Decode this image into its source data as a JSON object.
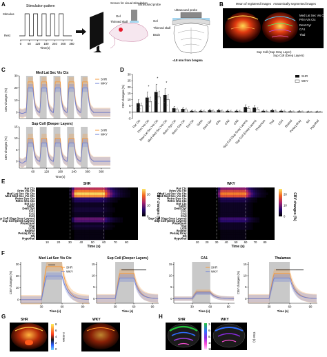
{
  "panel_letters": {
    "a": "A",
    "b": "B",
    "c": "C",
    "d": "D",
    "e": "E",
    "f": "F",
    "g": "G",
    "h": "H"
  },
  "colors": {
    "shr": "#f59a3c",
    "wky": "#6b7fd6",
    "stim": "#c9c9c9",
    "bar_shr": "#111111",
    "bar_wky": "#ffffff"
  },
  "panel_a": {
    "title": "Stimulation pattern",
    "stimulus": "Stimulus",
    "rest": "Rest",
    "xlabel": "Time(s)",
    "ticks": [
      "0",
      "60",
      "120",
      "180",
      "240",
      "300",
      "360"
    ],
    "screen_label": "Screen for visual stimulation",
    "probe_label": "Ultrasound probe",
    "gel": "Gel",
    "skull": "Thinned skull",
    "probe_label2": "Ultrasound probe",
    "gel2": "Gel",
    "skull2": "Thinned skull",
    "brain": "Brain",
    "bregma": "-4.8 mm from bregma"
  },
  "panel_b": {
    "title_left": "Mean of registered images",
    "title_right": "Anatomically segmented images",
    "regions_right": [
      "Med Lat Sec Vis Ctx",
      "Prim Vis Ctx",
      "Dent Gyr",
      "CA1",
      "Thal"
    ],
    "regions_bottom": [
      "Sup Coll (Sup Gray Layer)",
      "Sup Coll (Deep Layers)"
    ]
  },
  "panel_c": {
    "top_title": "Med Lat Sec Vis Ctx",
    "bottom_title": "Sup Coll (Deeper Layers)",
    "ylabel": "CBV changes (%)",
    "xlabel": "Time(s)",
    "legend_shr": "SHR",
    "legend_wky": "WKY",
    "top_yticks": [
      "0",
      "10",
      "20",
      "30"
    ],
    "bottom_yticks": [
      "0",
      "5",
      "10",
      "15"
    ],
    "xticks": [
      "60",
      "120",
      "180",
      "240",
      "300",
      "360"
    ]
  },
  "chart_data": [
    {
      "type": "line",
      "title": "Med Lat Sec Vis Ctx",
      "ylabel": "CBV changes (%)",
      "xlabel": "Time(s)",
      "xlim": [
        0,
        400
      ],
      "ylim": [
        -5,
        30
      ],
      "stim_windows": [
        [
          30,
          60
        ],
        [
          90,
          120
        ],
        [
          150,
          180
        ],
        [
          210,
          240
        ],
        [
          270,
          300
        ]
      ],
      "series": [
        {
          "name": "SHR",
          "peak": 25,
          "base": 0
        },
        {
          "name": "WKY",
          "peak": 20,
          "base": 0
        }
      ]
    },
    {
      "type": "line",
      "title": "Sup Coll (Deeper Layers)",
      "ylabel": "CBV changes (%)",
      "xlabel": "Time(s)",
      "xlim": [
        0,
        400
      ],
      "ylim": [
        -3,
        15
      ],
      "stim_windows": [
        [
          30,
          60
        ],
        [
          90,
          120
        ],
        [
          150,
          180
        ],
        [
          210,
          240
        ],
        [
          270,
          300
        ]
      ],
      "series": [
        {
          "name": "SHR",
          "peak": 10,
          "base": 0
        },
        {
          "name": "WKY",
          "peak": 8,
          "base": 0
        }
      ]
    },
    {
      "type": "bar",
      "ylabel": "CBV changes (%)",
      "ylim": [
        -5,
        30
      ],
      "yticks": [
        "-5",
        "0",
        "5",
        "10",
        "15",
        "20",
        "25",
        "30"
      ],
      "categories": [
        "Par Ctx",
        "Prim Vis Ctx",
        "Med Lat Sec Vis Ctx",
        "Med Med Sec Vis Ctx",
        "Retro Dys Ctx",
        "Retro Gra Ctx",
        "Ent Ctx",
        "Subic",
        "Dent Gyr",
        "CA1",
        "CA2",
        "CA3",
        "Sup Coll (Sup Gray Layers)",
        "Sup Coll (Deep Layers)",
        "Pretectum",
        "Thal",
        "LGN",
        "Brainst",
        "Periaq Gray",
        "SN",
        "Hypothal"
      ],
      "series": [
        {
          "name": "SHR",
          "values": [
            7,
            11.5,
            16,
            13.5,
            3,
            2.5,
            1,
            1,
            1.5,
            1.5,
            1,
            1,
            4,
            3.5,
            1,
            1.5,
            1,
            0.5,
            0.5,
            0.3,
            0.3
          ]
        },
        {
          "name": "WKY",
          "values": [
            5,
            8.5,
            12,
            10,
            2,
            2,
            0.8,
            0.8,
            1,
            1,
            0.8,
            0.8,
            3,
            2.5,
            0.8,
            1,
            0.8,
            0.4,
            0.4,
            0.2,
            0.2
          ]
        }
      ],
      "significance": [
        "",
        "*",
        "*",
        "*",
        "",
        "",
        "",
        "",
        "",
        "",
        "",
        "",
        "",
        "",
        "",
        "",
        "",
        "",
        "",
        "",
        ""
      ],
      "legend": [
        "SHR",
        "WKY"
      ]
    },
    {
      "type": "heatmap",
      "title": "SHR",
      "xlabel": "Time (s)",
      "xticks": [
        "10",
        "20",
        "30",
        "40",
        "50",
        "60",
        "70",
        "80"
      ],
      "colorbar_label": "CBV changes (%)",
      "colorbar_ticks": [
        "0",
        "10",
        "20"
      ],
      "rows": [
        "Par Ctx",
        "Prim Vis Ctx",
        "Med Lat Sec Vis Ctx",
        "Med Med Sec Vis Ctx",
        "Retro Dys Ctx",
        "Retro Gra Ctx",
        "Ent Ctx",
        "Subic",
        "Dent Gyr",
        "CA1",
        "CA2",
        "CA3",
        "Sup Coll (Sup Gray Layers)",
        "Sup Coll (Deep Layers)",
        "Pretectum",
        "Thal",
        "LGN",
        "Brainst",
        "Periaq Gray",
        "SN",
        "Hypothal"
      ],
      "row_peaks": [
        14,
        20,
        24,
        21,
        6,
        5,
        2,
        2,
        3,
        3,
        2,
        2,
        9,
        8,
        2,
        3,
        2,
        1,
        1,
        1,
        1
      ]
    },
    {
      "type": "heatmap",
      "title": "WKY",
      "xlabel": "Time (s)",
      "xticks": [
        "10",
        "20",
        "30",
        "40",
        "50",
        "60",
        "70",
        "80"
      ],
      "colorbar_label": "CBV changes (%)",
      "colorbar_ticks": [
        "0",
        "10",
        "20"
      ],
      "row_peaks": [
        11,
        16,
        20,
        17,
        5,
        4,
        2,
        2,
        2,
        2,
        2,
        2,
        7,
        6,
        2,
        2,
        2,
        1,
        1,
        1,
        1
      ]
    },
    {
      "type": "line",
      "title": "Med Lat Sec Vis Ctx",
      "ylabel": "CBV changes (%)",
      "xlabel": "Time (s)",
      "xticks": [
        "30",
        "60",
        "90"
      ],
      "yticks": [
        "0",
        "10",
        "20",
        "30"
      ],
      "ylim": [
        -3,
        32
      ],
      "series": [
        {
          "name": "SHR",
          "peak": 28
        },
        {
          "name": "WKY",
          "peak": 20
        }
      ]
    },
    {
      "type": "line",
      "title": "Sup Coll (Deeper Layers)",
      "xlabel": "Time (s)",
      "xticks": [
        "30",
        "60",
        "90"
      ],
      "yticks": [
        "0",
        "5",
        "10",
        "15"
      ],
      "ylim": [
        -2,
        16
      ],
      "series": [
        {
          "name": "SHR",
          "peak": 11
        },
        {
          "name": "WKY",
          "peak": 9
        }
      ]
    },
    {
      "type": "line",
      "title": "CA1",
      "xlabel": "Time (s)",
      "xticks": [
        "30",
        "60",
        "90"
      ],
      "yticks": [
        "0",
        "5",
        "10",
        "15"
      ],
      "ylim": [
        -2,
        16
      ],
      "series": [
        {
          "name": "SHR",
          "peak": 3
        },
        {
          "name": "WKY",
          "peak": 2.5
        }
      ]
    },
    {
      "type": "line",
      "title": "Thalamus",
      "xlabel": "Time (s)",
      "xticks": [
        "30",
        "60",
        "90"
      ],
      "yticks": [
        "0",
        "5",
        "10",
        "15"
      ],
      "ylim": [
        -2,
        16
      ],
      "series": [
        {
          "name": "SHR",
          "peak": 11
        },
        {
          "name": "WKY",
          "peak": 9
        }
      ]
    }
  ],
  "panel_f": {
    "legend_shr": "SHR",
    "legend_wky": "WKY",
    "ylabel": "CBV changes (%)"
  },
  "panel_g": {
    "shr": "SHR",
    "wky": "WKY",
    "zscore": "z-score",
    "ticks": [
      "8",
      "6",
      "4",
      "2",
      "0"
    ]
  },
  "panel_h": {
    "shr": "SHR",
    "wky": "WKY",
    "time_label": "Time (s)",
    "ticks": [
      "3.5",
      "6.0",
      "8.5",
      "10.0",
      "11.5"
    ]
  }
}
